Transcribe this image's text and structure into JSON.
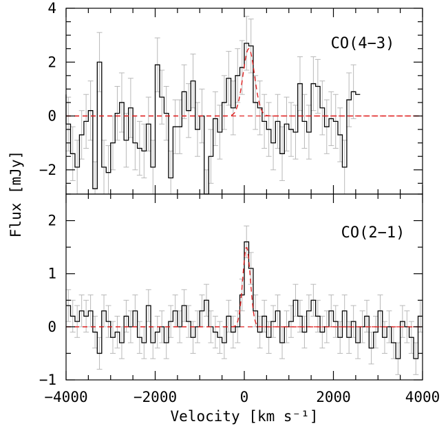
{
  "figure": {
    "xlabel": "Velocity [km s⁻¹]",
    "ylabel": "Flux [mJy]"
  },
  "chart_data": [
    {
      "type": "line",
      "panel": "top",
      "label": "CO(4−3)",
      "xlim": [
        -4000,
        4000
      ],
      "ylim": [
        -2.9,
        4
      ],
      "xticks": [
        -4000,
        -2000,
        0,
        2000,
        4000
      ],
      "yticks": [
        -2,
        0,
        2,
        4
      ],
      "bin_width": 100,
      "series": [
        {
          "style": "steps",
          "color": "#000000",
          "x": [
            -4050,
            -3950,
            -3850,
            -3750,
            -3650,
            -3550,
            -3450,
            -3350,
            -3250,
            -3150,
            -3050,
            -2950,
            -2850,
            -2750,
            -2650,
            -2550,
            -2450,
            -2350,
            -2250,
            -2150,
            -2050,
            -1950,
            -1850,
            -1750,
            -1650,
            -1550,
            -1450,
            -1350,
            -1250,
            -1150,
            -1050,
            -950,
            -850,
            -750,
            -650,
            -550,
            -450,
            -350,
            -250,
            -150,
            -50,
            50,
            150,
            250,
            350,
            450,
            550,
            650,
            750,
            850,
            950,
            1050,
            1150,
            1250,
            1350,
            1450,
            1550,
            1650,
            1750,
            1850,
            1950,
            2050,
            2150,
            2250,
            2350,
            2450,
            2550
          ],
          "y": [
            0.8,
            -0.3,
            -1.4,
            -1.9,
            -0.7,
            -0.2,
            0.2,
            -2.7,
            2.0,
            -1.9,
            -2.1,
            -1.0,
            0.1,
            0.5,
            -0.9,
            0.3,
            -1.0,
            -1.2,
            -1.3,
            -0.3,
            -1.9,
            1.9,
            0.7,
            0.1,
            -2.3,
            -0.4,
            -0.4,
            0.9,
            0.2,
            1.3,
            -0.5,
            0.0,
            -3.0,
            -1.5,
            -0.1,
            -0.6,
            0.5,
            1.4,
            0.3,
            1.5,
            1.8,
            2.7,
            2.6,
            0.5,
            0.3,
            -0.2,
            -0.5,
            -1.0,
            -0.2,
            -1.4,
            -0.3,
            -0.5,
            -0.6,
            1.2,
            -0.2,
            -0.6,
            1.2,
            1.1,
            0.3,
            -0.4,
            -0.1,
            -0.2,
            -0.7,
            -1.9,
            0.6,
            0.9,
            0.8
          ],
          "yerr": [
            0.9,
            1.0,
            1.0,
            1.0,
            0.9,
            1.0,
            1.1,
            1.0,
            1.1,
            1.0,
            1.0,
            1.0,
            1.0,
            1.1,
            1.0,
            1.1,
            1.0,
            1.0,
            1.0,
            1.0,
            1.0,
            1.0,
            1.0,
            1.0,
            1.0,
            1.0,
            1.0,
            1.0,
            1.0,
            1.0,
            1.0,
            1.0,
            1.0,
            1.0,
            1.0,
            1.0,
            1.0,
            1.0,
            1.0,
            1.0,
            1.0,
            1.0,
            1.0,
            1.0,
            1.0,
            1.0,
            1.0,
            1.0,
            1.0,
            1.0,
            1.0,
            1.0,
            1.0,
            1.0,
            1.0,
            1.0,
            1.0,
            1.0,
            1.0,
            1.0,
            1.0,
            1.0,
            1.0,
            1.0,
            1.0,
            1.0,
            0.0
          ]
        },
        {
          "style": "dashed-gaussian",
          "color": "#e02020",
          "amplitude": 2.5,
          "center": 100,
          "sigma": 130
        }
      ]
    },
    {
      "type": "line",
      "panel": "bottom",
      "label": "CO(2−1)",
      "xlim": [
        -4000,
        4000
      ],
      "ylim": [
        -1,
        2.5
      ],
      "xticks": [
        -4000,
        -2000,
        0,
        2000,
        4000
      ],
      "yticks": [
        -1,
        0,
        1,
        2
      ],
      "bin_width": 100,
      "series": [
        {
          "style": "steps",
          "color": "#000000",
          "x": [
            -3950,
            -3850,
            -3750,
            -3650,
            -3550,
            -3450,
            -3350,
            -3250,
            -3150,
            -3050,
            -2950,
            -2850,
            -2750,
            -2650,
            -2550,
            -2450,
            -2350,
            -2250,
            -2150,
            -2050,
            -1950,
            -1850,
            -1750,
            -1650,
            -1550,
            -1450,
            -1350,
            -1250,
            -1150,
            -1050,
            -950,
            -850,
            -750,
            -650,
            -550,
            -450,
            -350,
            -250,
            -150,
            -50,
            50,
            150,
            250,
            350,
            450,
            550,
            650,
            750,
            850,
            950,
            1050,
            1150,
            1250,
            1350,
            1450,
            1550,
            1650,
            1750,
            1850,
            1950,
            2050,
            2150,
            2250,
            2350,
            2450,
            2550,
            2650,
            2750,
            2850,
            2950,
            3050,
            3150,
            3250,
            3350,
            3450,
            3550,
            3650,
            3750,
            3850,
            3950
          ],
          "y": [
            0.4,
            0.2,
            0.1,
            0.3,
            0.2,
            0.3,
            -0.1,
            -0.5,
            0.3,
            0.1,
            -0.2,
            -0.1,
            -0.3,
            0.2,
            0.0,
            0.3,
            -0.2,
            -0.3,
            0.4,
            -0.3,
            -0.1,
            0.0,
            -0.3,
            0.1,
            0.3,
            0.0,
            0.4,
            0.1,
            -0.2,
            0.0,
            0.3,
            0.5,
            0.0,
            -0.1,
            -0.2,
            -0.3,
            0.2,
            -0.1,
            0.0,
            0.6,
            1.6,
            1.1,
            0.3,
            -0.1,
            0.2,
            -0.2,
            0.1,
            0.3,
            -0.3,
            0.0,
            0.1,
            0.5,
            0.2,
            -0.1,
            0.3,
            0.5,
            0.2,
            -0.1,
            0.0,
            0.3,
            0.1,
            -0.2,
            0.3,
            -0.2,
            0.1,
            -0.3,
            0.0,
            0.2,
            -0.4,
            -0.1,
            0.3,
            -0.2,
            0.0,
            -0.3,
            -0.6,
            0.1,
            0.0,
            -0.2,
            -0.6,
            0.2
          ],
          "yerr": [
            0.3,
            0.3,
            0.3,
            0.3,
            0.3,
            0.3,
            0.3,
            0.3,
            0.3,
            0.3,
            0.3,
            0.3,
            0.3,
            0.3,
            0.3,
            0.3,
            0.3,
            0.3,
            0.3,
            0.3,
            0.3,
            0.3,
            0.3,
            0.3,
            0.3,
            0.3,
            0.3,
            0.3,
            0.3,
            0.3,
            0.3,
            0.3,
            0.3,
            0.3,
            0.3,
            0.3,
            0.3,
            0.3,
            0.3,
            0.3,
            0.3,
            0.3,
            0.3,
            0.3,
            0.3,
            0.3,
            0.3,
            0.3,
            0.3,
            0.3,
            0.3,
            0.3,
            0.3,
            0.3,
            0.3,
            0.3,
            0.3,
            0.3,
            0.3,
            0.3,
            0.3,
            0.3,
            0.3,
            0.3,
            0.3,
            0.3,
            0.3,
            0.3,
            0.3,
            0.3,
            0.3,
            0.3,
            0.3,
            0.3,
            0.3,
            0.3,
            0.3,
            0.3,
            0.3,
            0.3
          ]
        },
        {
          "style": "dashed-gaussian",
          "color": "#e02020",
          "amplitude": 1.5,
          "center": 50,
          "sigma": 85
        }
      ]
    }
  ]
}
